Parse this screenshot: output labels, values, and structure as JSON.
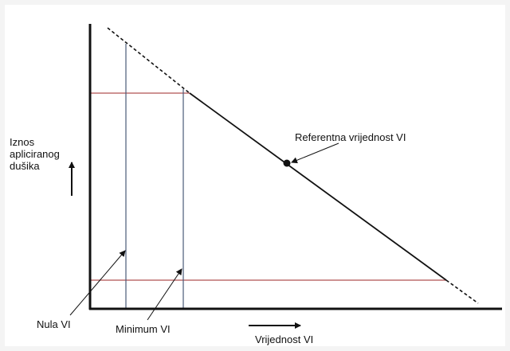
{
  "y_axis_label": [
    "Iznos",
    "apliciranog",
    "dušika"
  ],
  "reference_label": "Referentna vrijednost VI",
  "zero_label": "Nula VI",
  "minimum_label": "Minimum VI",
  "x_axis_label": "Vrijednost VI"
}
